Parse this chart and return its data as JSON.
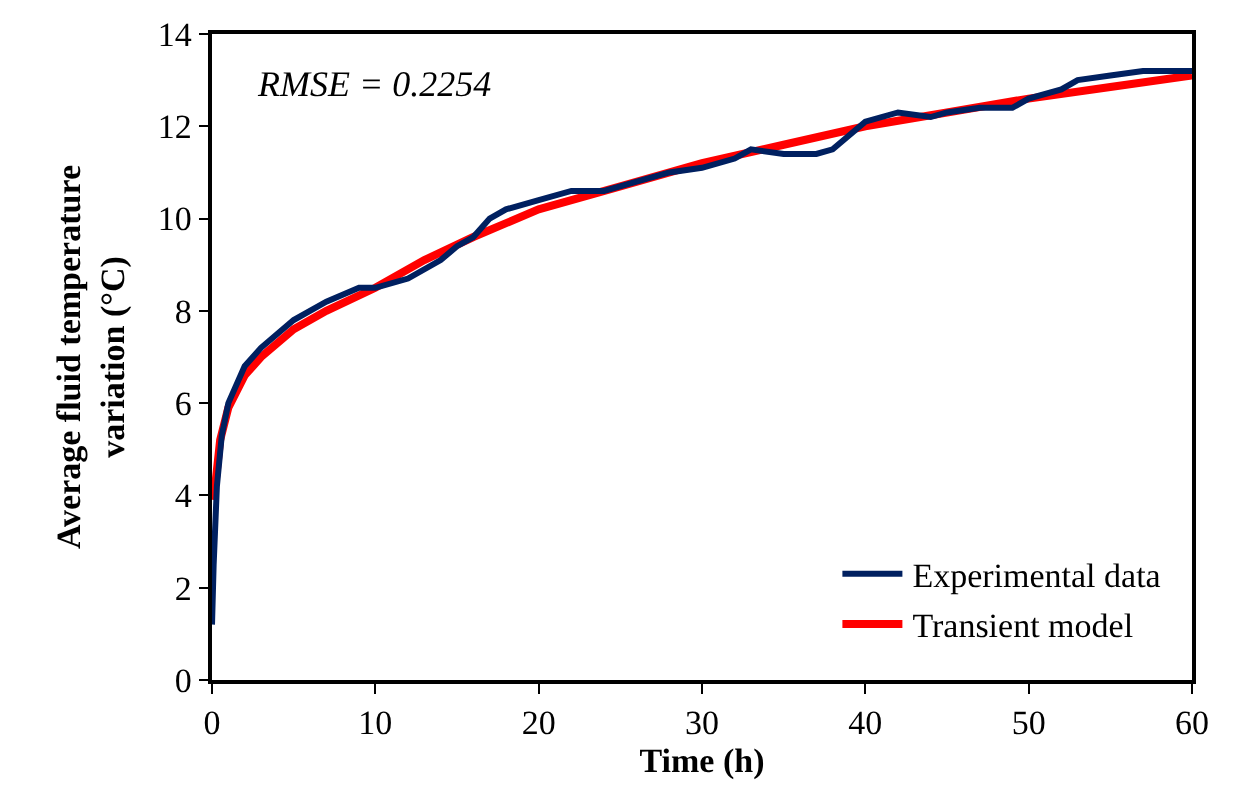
{
  "chart_data": {
    "type": "line",
    "xlabel": "Time (h)",
    "ylabel": "Average fluid temperature variation (°C)",
    "annotations": [
      "RMSE = 0.2254"
    ],
    "xlim": [
      0,
      60
    ],
    "xticks": [
      0,
      10,
      20,
      30,
      40,
      50,
      60
    ],
    "ylim": [
      0,
      14
    ],
    "yticks": [
      0,
      2,
      4,
      6,
      8,
      10,
      12,
      14
    ],
    "grid": false,
    "legend": "bottom right",
    "marker": "none",
    "line_style": "solid",
    "series": [
      {
        "name": "Experimental data",
        "color": "#002060",
        "x": [
          0,
          0.1,
          0.3,
          0.6,
          1,
          2,
          3,
          5,
          7,
          9,
          10,
          12,
          14,
          15,
          16,
          17,
          18,
          20,
          22,
          24,
          26,
          28,
          30,
          32,
          33,
          35,
          37,
          38,
          39,
          40,
          42,
          44,
          45,
          47,
          49,
          50,
          52,
          53,
          55,
          57,
          60
        ],
        "values": [
          1.2,
          2.5,
          4.2,
          5.3,
          6.0,
          6.8,
          7.2,
          7.8,
          8.2,
          8.5,
          8.5,
          8.7,
          9.1,
          9.4,
          9.6,
          10.0,
          10.2,
          10.4,
          10.6,
          10.6,
          10.8,
          11.0,
          11.1,
          11.3,
          11.5,
          11.4,
          11.4,
          11.5,
          11.8,
          12.1,
          12.3,
          12.2,
          12.3,
          12.4,
          12.4,
          12.6,
          12.8,
          13.0,
          13.1,
          13.2,
          13.2
        ]
      },
      {
        "name": "Transient model",
        "color": "#ff0000",
        "x": [
          0.1,
          0.5,
          1,
          2,
          3,
          5,
          7,
          10,
          13,
          16,
          20,
          25,
          30,
          35,
          40,
          45,
          50,
          55,
          60
        ],
        "values": [
          3.9,
          5.2,
          5.9,
          6.6,
          7.0,
          7.6,
          8.0,
          8.5,
          9.1,
          9.6,
          10.2,
          10.7,
          11.2,
          11.6,
          12.0,
          12.3,
          12.6,
          12.85,
          13.1
        ]
      }
    ]
  }
}
